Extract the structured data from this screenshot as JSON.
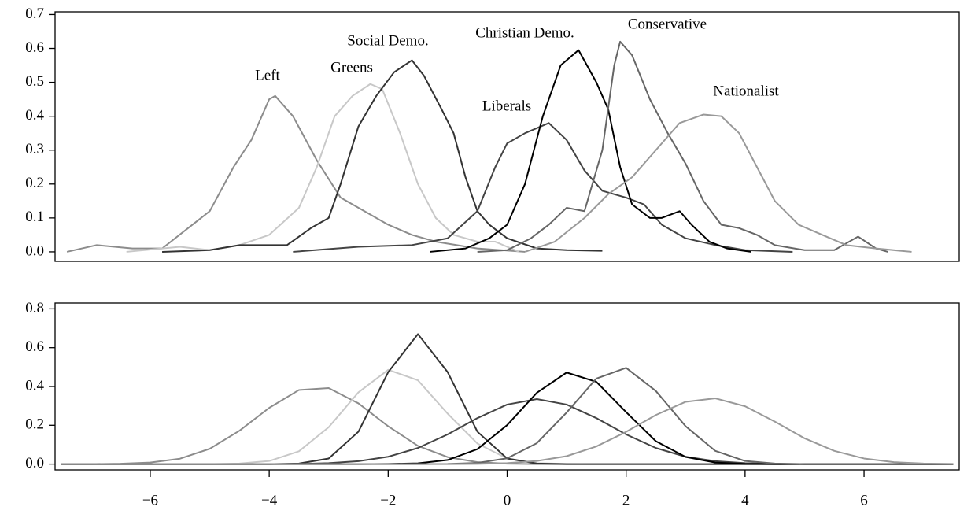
{
  "chart_data": [
    {
      "type": "line",
      "xlim": [
        -7.6,
        7.6
      ],
      "ylim": [
        -0.028,
        0.708
      ],
      "yticks": [
        {
          "value": 0,
          "label": "0.0"
        },
        0.1,
        0.2,
        0.3,
        0.4,
        0.5,
        0.6,
        0.7
      ],
      "series": [
        {
          "name": "Left",
          "color": "#8c8c8c",
          "x": [
            -7.4,
            -6.9,
            -6.3,
            -5.8,
            -5,
            -4.6,
            -4.3,
            -4,
            -3.9,
            -3.6,
            -3.2,
            -2.8,
            -2.4,
            -2,
            -1.6,
            -1.2,
            -0.5,
            0.3
          ],
          "values": [
            0,
            0.02,
            0.01,
            0.01,
            0.12,
            0.25,
            0.33,
            0.45,
            0.46,
            0.4,
            0.27,
            0.16,
            0.12,
            0.08,
            0.05,
            0.03,
            0.01,
            0
          ]
        },
        {
          "name": "Greens",
          "color": "#c8c8c8",
          "x": [
            -6.4,
            -5.5,
            -5,
            -4.5,
            -4,
            -3.5,
            -3.2,
            -2.9,
            -2.6,
            -2.3,
            -2.1,
            -1.8,
            -1.5,
            -1.2,
            -0.9,
            -0.5,
            -0.2,
            0.2
          ],
          "values": [
            0,
            0.015,
            0.005,
            0.02,
            0.05,
            0.13,
            0.25,
            0.4,
            0.46,
            0.495,
            0.48,
            0.35,
            0.2,
            0.1,
            0.05,
            0.03,
            0.03,
            0
          ]
        },
        {
          "name": "Social Demo.",
          "color": "#333333",
          "x": [
            -5.8,
            -5,
            -4.5,
            -4,
            -3.7,
            -3.3,
            -3,
            -2.8,
            -2.5,
            -2.2,
            -1.9,
            -1.6,
            -1.4,
            -1.1,
            -0.9,
            -0.7,
            -0.5,
            -0.3,
            0,
            0.5,
            1,
            1.6
          ],
          "values": [
            0,
            0.005,
            0.02,
            0.02,
            0.02,
            0.07,
            0.1,
            0.2,
            0.37,
            0.46,
            0.53,
            0.565,
            0.52,
            0.42,
            0.35,
            0.22,
            0.12,
            0.08,
            0.04,
            0.01,
            0.005,
            0.003
          ]
        },
        {
          "name": "Liberals",
          "color": "#444444",
          "x": [
            -3.6,
            -2.5,
            -1.6,
            -1,
            -0.5,
            -0.2,
            0,
            0.3,
            0.7,
            1,
            1.3,
            1.6,
            2,
            2.3,
            2.6,
            3,
            3.5,
            4,
            4.8
          ],
          "values": [
            0,
            0.015,
            0.02,
            0.04,
            0.12,
            0.25,
            0.32,
            0.35,
            0.38,
            0.33,
            0.24,
            0.18,
            0.16,
            0.14,
            0.08,
            0.04,
            0.02,
            0.005,
            0
          ]
        },
        {
          "name": "Christian Demo.",
          "color": "#000000",
          "x": [
            -1.3,
            -0.7,
            -0.3,
            0,
            0.3,
            0.6,
            0.9,
            1.2,
            1.5,
            1.7,
            1.9,
            2.1,
            2.4,
            2.6,
            2.9,
            3.1,
            3.4,
            3.7,
            4.1
          ],
          "values": [
            0,
            0.01,
            0.04,
            0.08,
            0.2,
            0.4,
            0.55,
            0.595,
            0.5,
            0.42,
            0.25,
            0.14,
            0.1,
            0.1,
            0.12,
            0.08,
            0.03,
            0.01,
            0
          ]
        },
        {
          "name": "Conservative",
          "color": "#666666",
          "x": [
            -0.5,
            0,
            0.4,
            0.7,
            1,
            1.3,
            1.6,
            1.8,
            1.9,
            2.1,
            2.4,
            2.7,
            3,
            3.3,
            3.6,
            3.9,
            4.2,
            4.5,
            5,
            5.5,
            5.9,
            6.2,
            6.4
          ],
          "values": [
            0,
            0.005,
            0.04,
            0.08,
            0.13,
            0.12,
            0.3,
            0.55,
            0.62,
            0.58,
            0.45,
            0.35,
            0.26,
            0.15,
            0.08,
            0.07,
            0.05,
            0.02,
            0.005,
            0.005,
            0.045,
            0.01,
            0
          ]
        },
        {
          "name": "Nationalist",
          "color": "#999999",
          "x": [
            0.3,
            0.8,
            1.3,
            1.7,
            2.1,
            2.5,
            2.9,
            3.3,
            3.6,
            3.9,
            4.2,
            4.5,
            4.9,
            5.3,
            5.7,
            6.2,
            6.8
          ],
          "values": [
            0,
            0.03,
            0.1,
            0.17,
            0.22,
            0.3,
            0.38,
            0.405,
            0.4,
            0.35,
            0.25,
            0.15,
            0.08,
            0.05,
            0.02,
            0.01,
            0
          ]
        }
      ]
    },
    {
      "type": "line",
      "xlim": [
        -7.6,
        7.6
      ],
      "ylim": [
        -0.03,
        0.83
      ],
      "yticks": [
        {
          "value": 0,
          "label": "0.0"
        },
        0.2,
        0.4,
        0.6,
        0.8
      ],
      "xticks": [
        {
          "value": -6,
          "label": "−6"
        },
        {
          "value": -4,
          "label": "−4"
        },
        {
          "value": -2,
          "label": "−2"
        },
        0,
        2,
        4,
        6
      ],
      "x": [
        -7.5,
        -7,
        -6.5,
        -6,
        -5.5,
        -5,
        -4.5,
        -4,
        -3.5,
        -3,
        -2.5,
        -2,
        -1.5,
        -1,
        -0.5,
        0,
        0.5,
        1,
        1.5,
        2,
        2.5,
        3,
        3.5,
        4,
        4.5,
        5,
        5.5,
        6,
        6.5,
        7,
        7.5
      ],
      "series": [
        {
          "color": "#8c8c8c",
          "values": [
            0,
            0,
            0.002,
            0.008,
            0.028,
            0.079,
            0.172,
            0.29,
            0.382,
            0.392,
            0.313,
            0.195,
            0.094,
            0.036,
            0.01,
            0.002,
            0,
            0,
            0,
            0,
            0,
            0,
            0,
            0,
            0,
            0,
            0,
            0,
            0,
            0,
            0
          ]
        },
        {
          "color": "#c8c8c8",
          "values": [
            0,
            0,
            0,
            0,
            0,
            0,
            0.003,
            0.016,
            0.066,
            0.19,
            0.37,
            0.486,
            0.432,
            0.26,
            0.106,
            0.029,
            0.005,
            0.001,
            0,
            0,
            0,
            0,
            0,
            0,
            0,
            0,
            0,
            0,
            0,
            0,
            0
          ]
        },
        {
          "color": "#333333",
          "values": [
            0,
            0,
            0,
            0,
            0,
            0,
            0,
            0,
            0.003,
            0.029,
            0.167,
            0.474,
            0.67,
            0.474,
            0.167,
            0.029,
            0.003,
            0,
            0,
            0,
            0,
            0,
            0,
            0,
            0,
            0,
            0,
            0,
            0,
            0,
            0
          ]
        },
        {
          "color": "#444444",
          "values": [
            0,
            0,
            0,
            0,
            0,
            0,
            0,
            0,
            0.001,
            0.005,
            0.015,
            0.038,
            0.083,
            0.153,
            0.237,
            0.307,
            0.335,
            0.307,
            0.237,
            0.153,
            0.083,
            0.038,
            0.015,
            0.005,
            0.001,
            0,
            0,
            0,
            0,
            0,
            0
          ]
        },
        {
          "color": "#000000",
          "values": [
            0,
            0,
            0,
            0,
            0,
            0,
            0,
            0,
            0,
            0,
            0,
            0.001,
            0.004,
            0.021,
            0.077,
            0.201,
            0.368,
            0.472,
            0.424,
            0.268,
            0.118,
            0.037,
            0.008,
            0.001,
            0,
            0,
            0,
            0,
            0,
            0,
            0
          ]
        },
        {
          "color": "#666666",
          "values": [
            0,
            0,
            0,
            0,
            0,
            0,
            0,
            0,
            0,
            0,
            0,
            0,
            0,
            0.001,
            0.006,
            0.03,
            0.108,
            0.266,
            0.441,
            0.496,
            0.377,
            0.195,
            0.068,
            0.016,
            0.003,
            0,
            0,
            0,
            0,
            0,
            0
          ]
        },
        {
          "color": "#999999",
          "values": [
            0,
            0,
            0,
            0,
            0,
            0,
            0,
            0,
            0,
            0,
            0,
            0,
            0,
            0,
            0.001,
            0.005,
            0.016,
            0.041,
            0.091,
            0.166,
            0.253,
            0.321,
            0.339,
            0.298,
            0.219,
            0.133,
            0.068,
            0.029,
            0.01,
            0.003,
            0.001
          ]
        }
      ]
    }
  ]
}
